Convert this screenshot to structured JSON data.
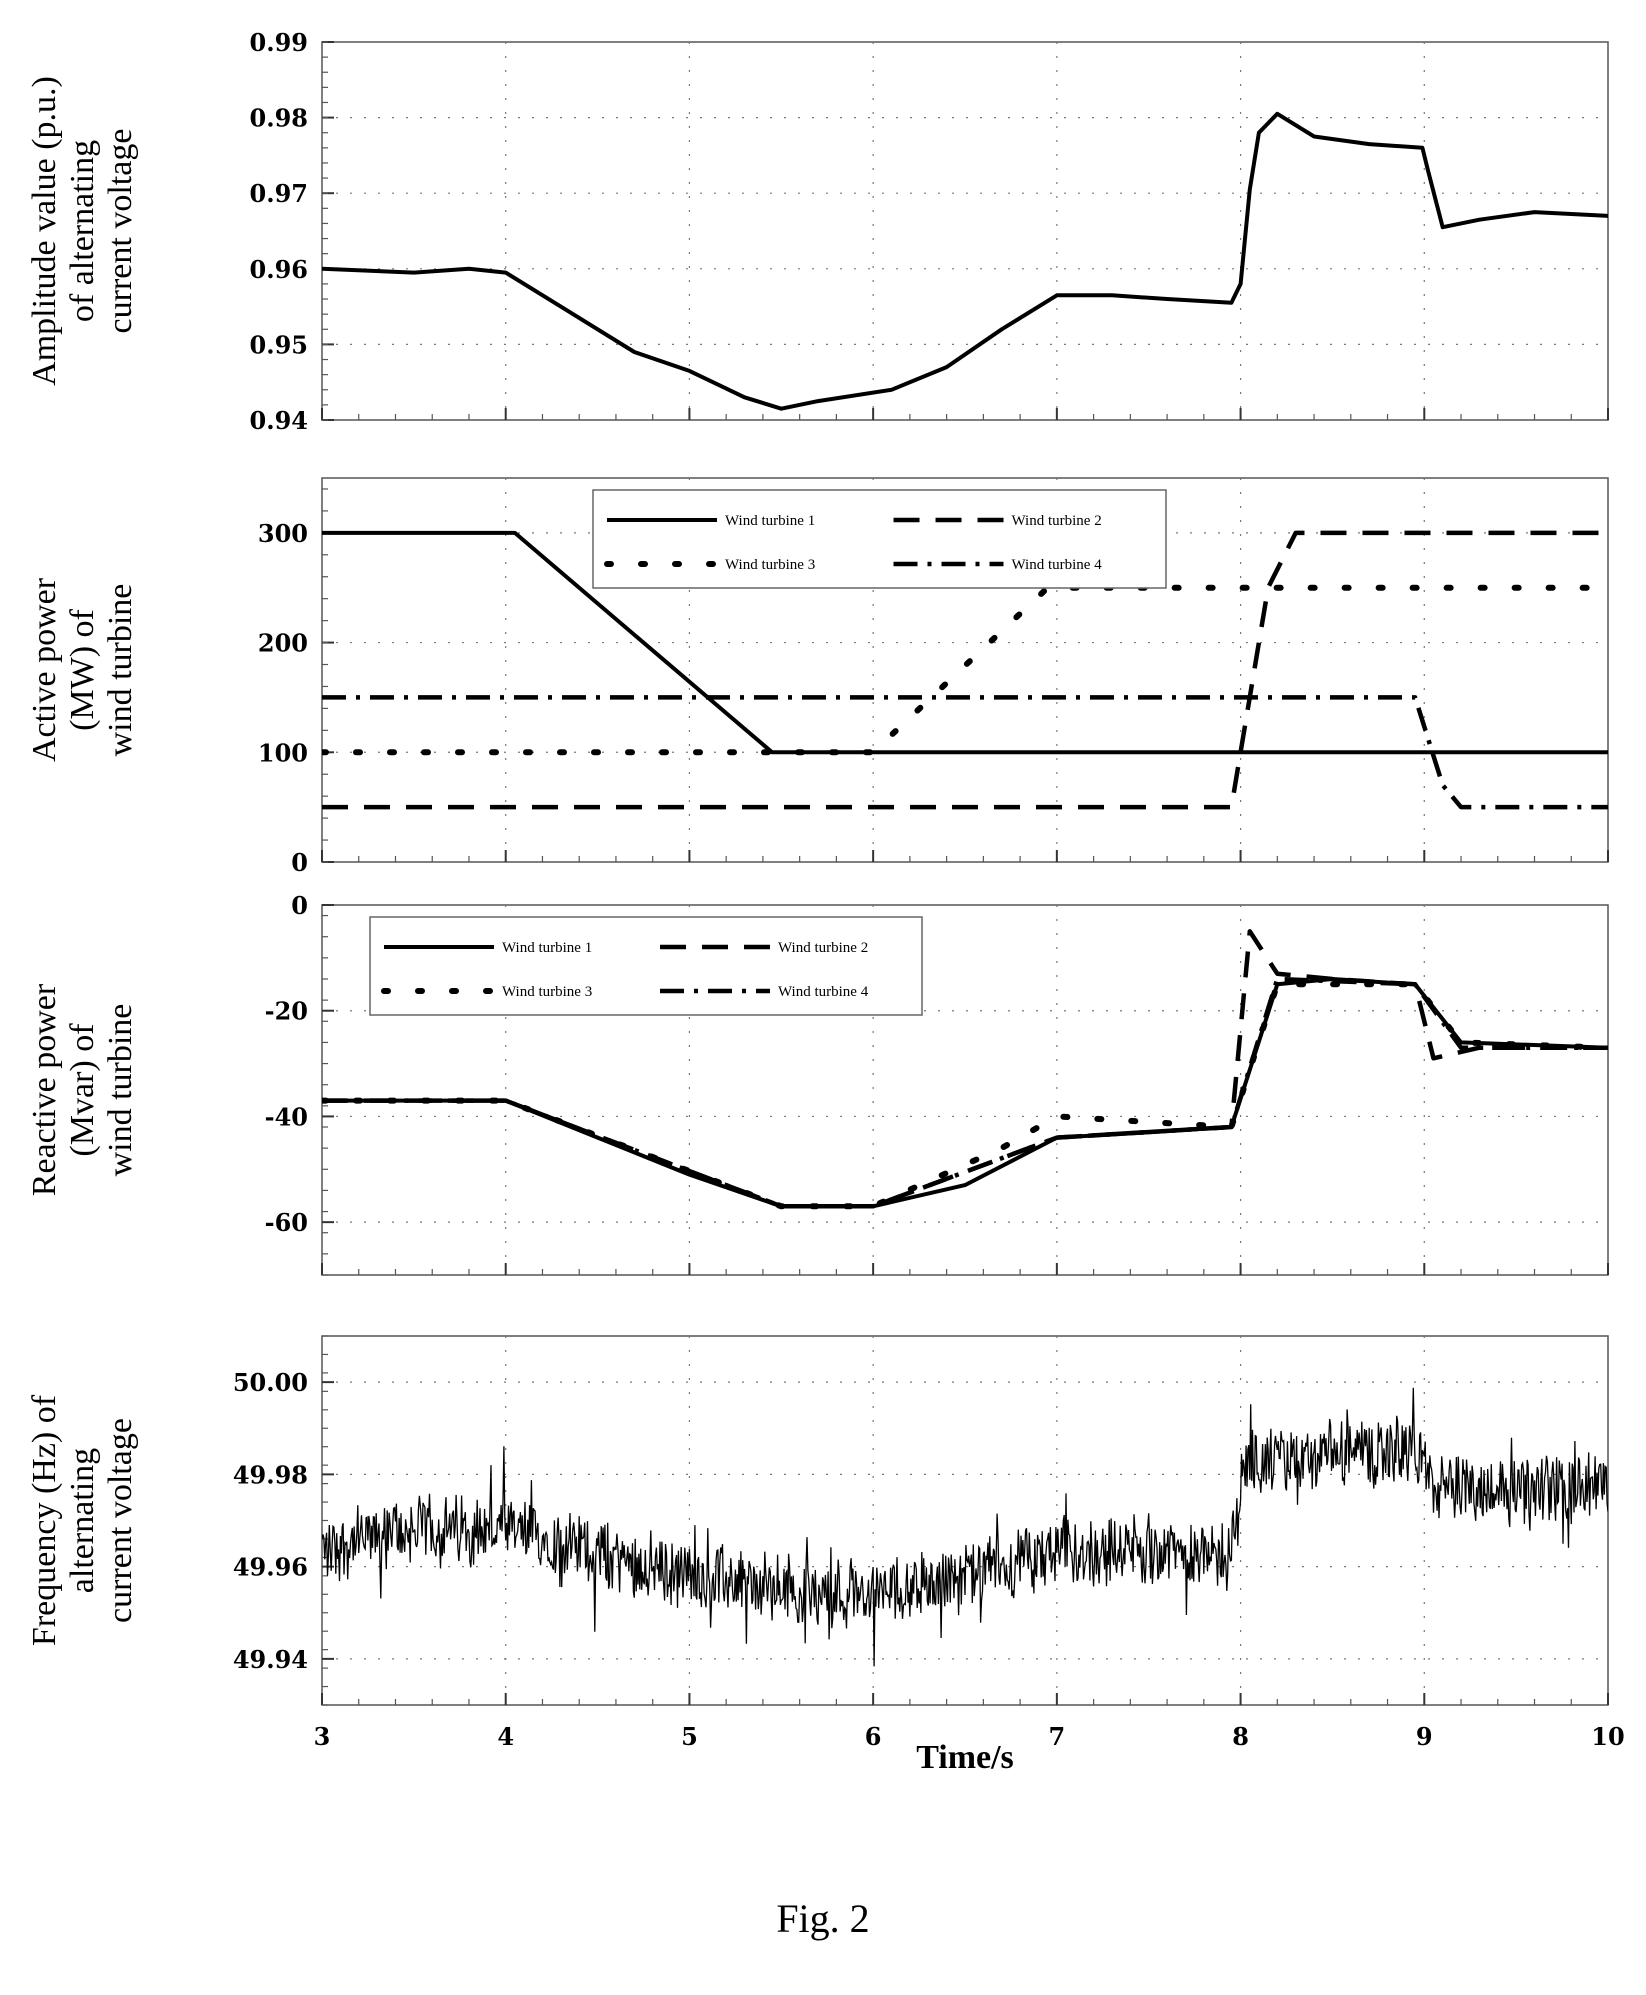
{
  "caption": "Fig. 2",
  "xlabel": "Time/s",
  "chart_data": [
    {
      "type": "line",
      "ylabel_lines": [
        "Amplitude value (p.u.)",
        "of alternating",
        "current voltage"
      ],
      "xlim": [
        3,
        10
      ],
      "ylim": [
        0.94,
        0.99
      ],
      "yticks": [
        0.94,
        0.95,
        0.96,
        0.97,
        0.98,
        0.99
      ],
      "ytick_labels": [
        "0.94",
        "0.95",
        "0.96",
        "0.97",
        "0.98",
        "0.99"
      ],
      "grid": true,
      "series": [
        {
          "style": "solid",
          "x": [
            3.0,
            3.5,
            3.8,
            4.0,
            4.3,
            4.7,
            5.0,
            5.3,
            5.5,
            5.7,
            6.1,
            6.4,
            6.7,
            7.0,
            7.3,
            7.6,
            7.95,
            8.0,
            8.05,
            8.1,
            8.2,
            8.4,
            8.7,
            8.99,
            9.02,
            9.1,
            9.3,
            9.6,
            10.0
          ],
          "y": [
            0.96,
            0.9595,
            0.96,
            0.9595,
            0.955,
            0.949,
            0.9465,
            0.943,
            0.9415,
            0.9425,
            0.944,
            0.947,
            0.952,
            0.9565,
            0.9565,
            0.956,
            0.9555,
            0.958,
            0.9705,
            0.978,
            0.9805,
            0.9775,
            0.9765,
            0.976,
            0.973,
            0.9655,
            0.9665,
            0.9675,
            0.967
          ]
        }
      ]
    },
    {
      "type": "line",
      "ylabel_lines": [
        "Active power",
        "(MW) of",
        "wind turbine"
      ],
      "xlim": [
        3,
        10
      ],
      "ylim": [
        0,
        350
      ],
      "yticks": [
        0,
        100,
        200,
        300
      ],
      "ytick_labels": [
        "0",
        "100",
        "200",
        "300"
      ],
      "grid": true,
      "legend": [
        "Wind turbine 1",
        "Wind turbine 2",
        "Wind turbine 3",
        "Wind turbine 4"
      ],
      "legend_position": "top-center",
      "series": [
        {
          "name": "Wind turbine 1",
          "style": "solid",
          "x": [
            3,
            4.05,
            5.45,
            10
          ],
          "y": [
            300,
            300,
            100,
            100
          ]
        },
        {
          "name": "Wind turbine 2",
          "style": "dash",
          "x": [
            3,
            7.95,
            8.15,
            8.3,
            10
          ],
          "y": [
            50,
            50,
            250,
            300,
            300
          ]
        },
        {
          "name": "Wind turbine 3",
          "style": "dot",
          "x": [
            3,
            6.0,
            6.95,
            10
          ],
          "y": [
            100,
            100,
            250,
            250
          ]
        },
        {
          "name": "Wind turbine 4",
          "style": "dashdot",
          "x": [
            3,
            8.95,
            9.1,
            9.2,
            10
          ],
          "y": [
            150,
            150,
            70,
            50,
            50
          ]
        }
      ]
    },
    {
      "type": "line",
      "ylabel_lines": [
        "Reactive power",
        "(Mvar) of",
        "wind turbine"
      ],
      "xlim": [
        3,
        10
      ],
      "ylim": [
        -70,
        0
      ],
      "yticks": [
        -60,
        -40,
        -20,
        0
      ],
      "ytick_labels": [
        "-60",
        "-40",
        "-20",
        "0"
      ],
      "grid": true,
      "legend": [
        "Wind turbine 1",
        "Wind turbine 2",
        "Wind turbine 3",
        "Wind turbine 4"
      ],
      "legend_position": "top-left",
      "series": [
        {
          "name": "Wind turbine 1",
          "style": "solid",
          "x": [
            3.0,
            4.0,
            4.5,
            5.0,
            5.5,
            6.0,
            6.5,
            7.0,
            7.5,
            7.95,
            8.2,
            8.5,
            8.95,
            9.2,
            10.0
          ],
          "y": [
            -37,
            -37,
            -44,
            -51,
            -57,
            -57,
            -53,
            -44,
            -43,
            -42,
            -15,
            -14,
            -15,
            -26,
            -27
          ]
        },
        {
          "name": "Wind turbine 2",
          "style": "dash",
          "x": [
            3.0,
            4.0,
            5.5,
            6.0,
            7.0,
            7.95,
            8.05,
            8.2,
            8.5,
            8.95,
            9.05,
            9.3,
            10.0
          ],
          "y": [
            -37,
            -37,
            -57,
            -57,
            -44,
            -42,
            -5,
            -13,
            -14,
            -15,
            -29,
            -27,
            -27
          ]
        },
        {
          "name": "Wind turbine 3",
          "style": "dot",
          "x": [
            3.0,
            4.0,
            5.5,
            6.0,
            6.7,
            7.0,
            7.95,
            8.2,
            8.95,
            9.2,
            10.0
          ],
          "y": [
            -37,
            -37,
            -57,
            -57,
            -46,
            -40,
            -42,
            -15,
            -15,
            -26,
            -27
          ]
        },
        {
          "name": "Wind turbine 4",
          "style": "dashdot",
          "x": [
            3.0,
            4.0,
            5.5,
            6.0,
            7.0,
            7.95,
            8.2,
            8.95,
            9.2,
            10.0
          ],
          "y": [
            -37,
            -37,
            -57,
            -57,
            -44,
            -42,
            -14,
            -15,
            -27,
            -27
          ]
        }
      ]
    },
    {
      "type": "line",
      "ylabel_lines": [
        "Frequency (Hz) of",
        "alternating",
        "current voltage"
      ],
      "xlim": [
        3,
        10
      ],
      "ylim": [
        49.93,
        50.01
      ],
      "yticks": [
        49.94,
        49.96,
        49.98,
        50.0
      ],
      "ytick_labels": [
        "49.94",
        "49.96",
        "49.98",
        "50.00"
      ],
      "xticks": [
        3,
        4,
        5,
        6,
        7,
        8,
        9,
        10
      ],
      "xtick_labels": [
        "3",
        "4",
        "5",
        "6",
        "7",
        "8",
        "9",
        "10"
      ],
      "grid": true,
      "series": [
        {
          "style": "noisy",
          "x": [
            3.0,
            3.5,
            4.0,
            4.5,
            5.0,
            5.5,
            6.0,
            6.5,
            7.0,
            7.5,
            7.95,
            8.02,
            8.3,
            8.7,
            9.0,
            9.05,
            9.3,
            10.0
          ],
          "y": [
            49.964,
            49.968,
            49.968,
            49.963,
            49.958,
            49.955,
            49.954,
            49.958,
            49.963,
            49.964,
            49.962,
            49.983,
            49.983,
            49.985,
            49.985,
            49.976,
            49.977,
            49.977
          ]
        }
      ]
    }
  ]
}
